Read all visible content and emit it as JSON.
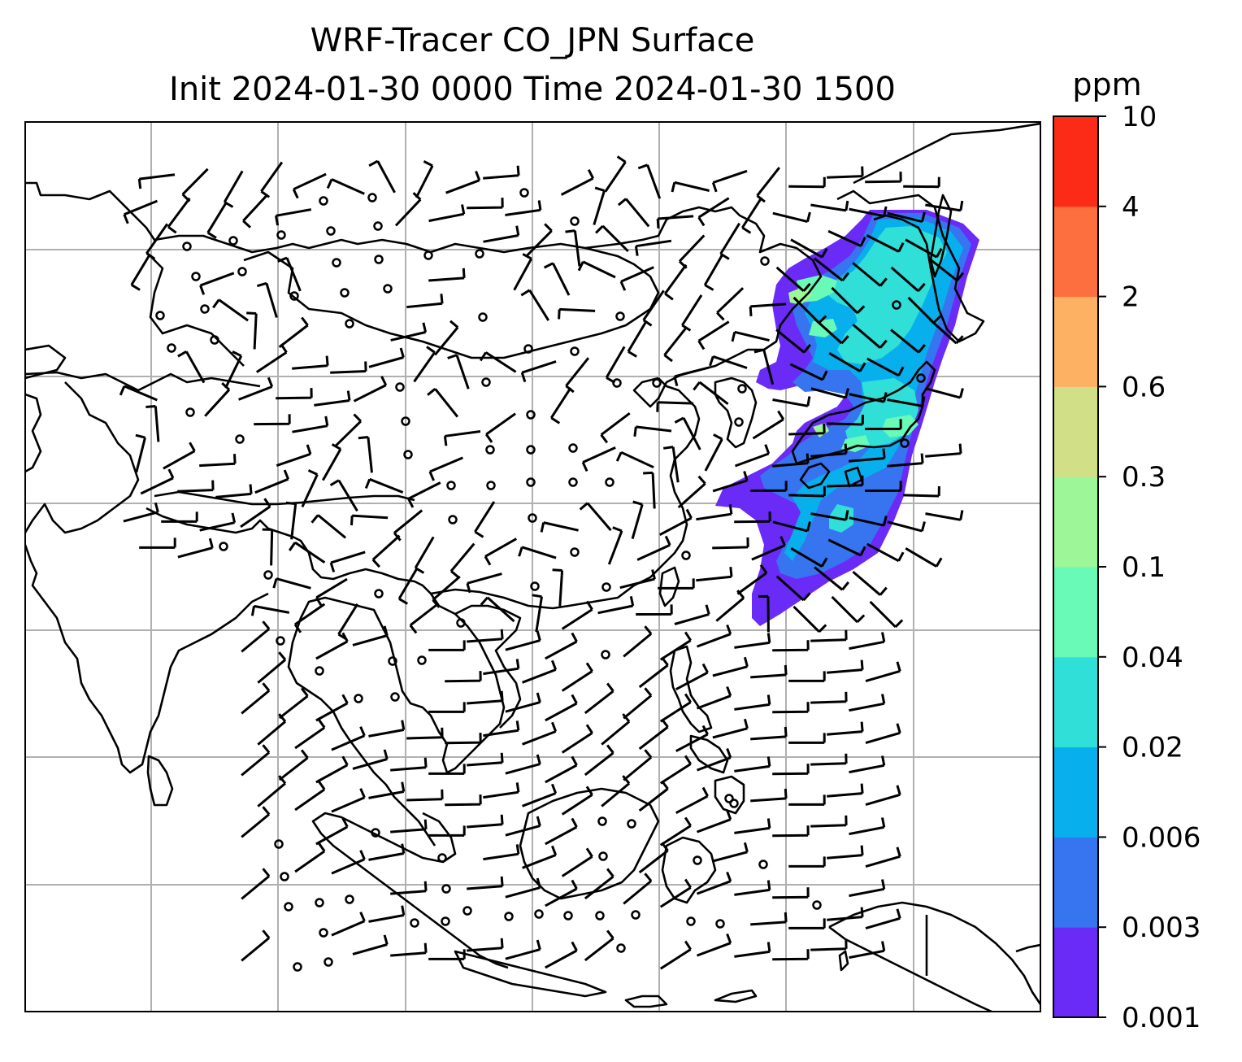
{
  "title": {
    "line1": "WRF-Tracer CO_JPN Surface",
    "line2": "Init 2024-01-30 0000 Time 2024-01-30 1500"
  },
  "colorbar": {
    "units": "ppm",
    "levels": [
      "0.001",
      "0.003",
      "0.006",
      "0.02",
      "0.04",
      "0.1",
      "0.3",
      "0.6",
      "2",
      "4",
      "10"
    ],
    "colors": [
      "#6a2bf7",
      "#3775f0",
      "#07b0ec",
      "#30dfd8",
      "#68fab6",
      "#9df799",
      "#d1e086",
      "#fdb263",
      "#fd6f3e",
      "#fb2b17"
    ]
  },
  "map": {
    "background": "#ffffff",
    "coastline_color": "#000000",
    "gridline_color": "#b0b0b0",
    "wind_barb_color": "#000000"
  }
}
